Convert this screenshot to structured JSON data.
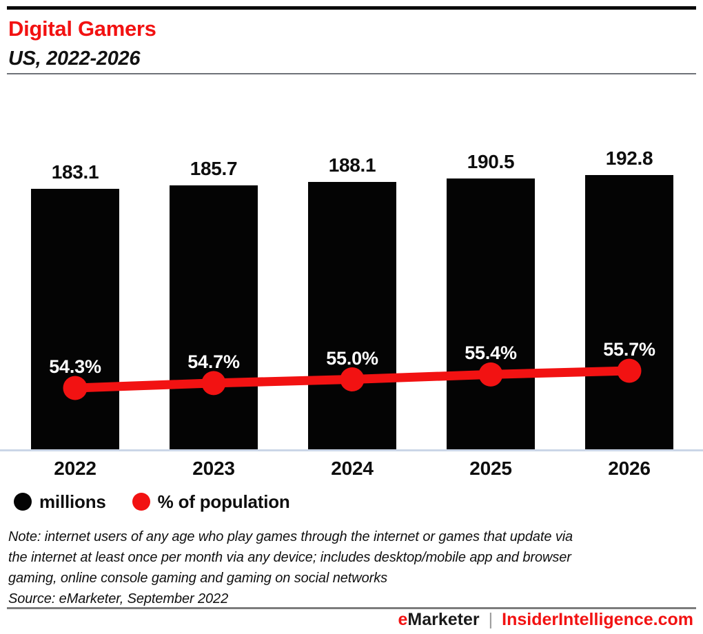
{
  "header": {
    "title": "Digital Gamers",
    "subtitle": "US, 2022-2026"
  },
  "chart_data": {
    "type": "bar",
    "categories": [
      "2022",
      "2023",
      "2024",
      "2025",
      "2026"
    ],
    "series": [
      {
        "name": "millions",
        "type": "bar",
        "color": "#040404",
        "values": [
          183.1,
          185.7,
          188.1,
          190.5,
          192.8
        ]
      },
      {
        "name": "% of population",
        "type": "line",
        "color": "#f21212",
        "values": [
          54.3,
          54.7,
          55.0,
          55.4,
          55.7
        ]
      }
    ],
    "bar_value_labels": [
      "183.1",
      "185.7",
      "188.1",
      "190.5",
      "192.8"
    ],
    "line_value_labels": [
      "54.3%",
      "54.7%",
      "55.0%",
      "55.4%",
      "55.7%"
    ],
    "legend": [
      {
        "label": "millions",
        "color": "#040404"
      },
      {
        "label": "% of population",
        "color": "#f21212"
      }
    ],
    "legend_position": "bottom-left",
    "grid": false,
    "title": "Digital Gamers",
    "subtitle": "US, 2022-2026"
  },
  "note_lines": [
    "Note: internet users of any age who play games through the internet or games that update via",
    "the internet at least once per month via any device; includes desktop/mobile app and browser",
    "gaming, online console gaming and gaming on social networks"
  ],
  "source": "Source: eMarketer, September 2022",
  "footer": {
    "brand_prefix": "e",
    "brand_rest": "Marketer",
    "separator": "|",
    "site": "InsiderIntelligence.com"
  },
  "colors": {
    "accent_red": "#f21212",
    "bar_black": "#040404",
    "brand_dark": "#1a1a1a",
    "axis_line": "#ccd6e8",
    "footer_rule": "#7c7c7c"
  }
}
